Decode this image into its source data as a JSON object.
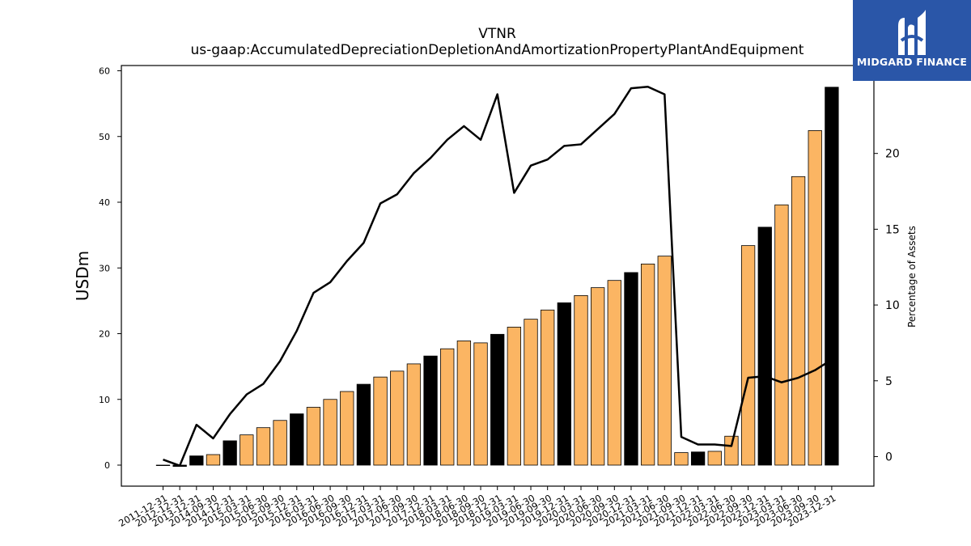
{
  "chart_data": {
    "type": "bar",
    "title": "VTNR",
    "subtitle": "us-gaap:AccumulatedDepreciationDepletionAndAmortizationPropertyPlantAndEquipment",
    "ylabel": "USDm",
    "y2label": "Percentage of Assets",
    "ylim": [
      -3.2,
      60.8
    ],
    "y2lim": [
      -1.95,
      25.8
    ],
    "yticks": [
      0,
      10,
      20,
      30,
      40,
      50,
      60
    ],
    "y2ticks": [
      0,
      5,
      10,
      15,
      20
    ],
    "categories": [
      "2011-12-31",
      "2012-12-31",
      "2013-12-31",
      "2014-09-30",
      "2014-12-31",
      "2015-03-31",
      "2015-06-30",
      "2015-09-30",
      "2015-12-31",
      "2016-03-31",
      "2016-06-30",
      "2016-09-30",
      "2016-12-31",
      "2017-03-31",
      "2017-06-30",
      "2017-09-30",
      "2017-12-31",
      "2018-03-31",
      "2018-06-30",
      "2018-09-30",
      "2018-12-31",
      "2019-03-31",
      "2019-06-30",
      "2019-09-30",
      "2019-12-31",
      "2020-03-31",
      "2020-06-30",
      "2020-09-30",
      "2020-12-31",
      "2021-03-31",
      "2021-06-30",
      "2021-09-30",
      "2021-12-31",
      "2022-03-31",
      "2022-06-30",
      "2022-09-30",
      "2022-12-31",
      "2023-03-31",
      "2023-06-30",
      "2023-09-30",
      "2023-12-31"
    ],
    "series": [
      {
        "type": "bar",
        "values": [
          0.0,
          -0.2,
          1.4,
          1.6,
          3.7,
          4.6,
          5.7,
          6.8,
          7.8,
          8.8,
          10.0,
          11.2,
          12.3,
          13.4,
          14.3,
          15.4,
          16.6,
          17.7,
          18.9,
          18.6,
          19.9,
          21.0,
          22.2,
          23.6,
          24.7,
          25.8,
          27.0,
          28.1,
          29.3,
          30.6,
          31.8,
          1.9,
          2.0,
          2.1,
          4.4,
          33.4,
          36.2,
          39.6,
          43.9,
          50.9,
          57.5
        ],
        "annual": [
          true,
          true,
          true,
          false,
          true,
          false,
          false,
          false,
          true,
          false,
          false,
          false,
          true,
          false,
          false,
          false,
          true,
          false,
          false,
          false,
          true,
          false,
          false,
          false,
          true,
          false,
          false,
          false,
          true,
          false,
          false,
          false,
          true,
          false,
          false,
          false,
          true,
          false,
          false,
          false,
          true
        ]
      },
      {
        "type": "line",
        "axis": "right",
        "values": [
          -0.2,
          -0.6,
          2.1,
          1.2,
          2.8,
          4.1,
          4.8,
          6.3,
          8.3,
          10.8,
          11.5,
          12.9,
          14.1,
          16.7,
          17.3,
          18.7,
          19.7,
          20.9,
          21.8,
          20.9,
          23.9,
          17.4,
          19.2,
          19.6,
          20.5,
          20.6,
          21.6,
          22.6,
          24.3,
          24.4,
          23.9,
          1.3,
          0.8,
          0.8,
          0.7,
          5.2,
          5.3,
          4.9,
          5.2,
          5.7,
          6.4
        ]
      }
    ],
    "colors": {
      "annual_bar": "#000000",
      "quarter_bar": "#fbb563",
      "line": "#000000",
      "bar_edge": "#000000"
    },
    "grid": false
  },
  "logo": {
    "text": "MIDGARD FINANCE",
    "icon": "midgard-logo-icon",
    "color": "#2a56a8"
  }
}
